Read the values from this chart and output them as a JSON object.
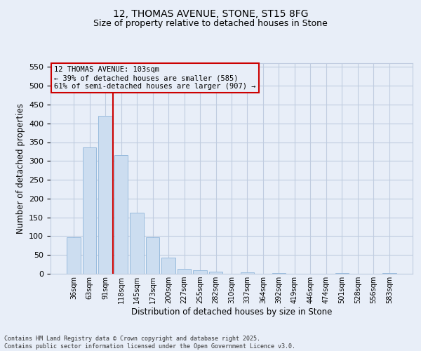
{
  "title_line1": "12, THOMAS AVENUE, STONE, ST15 8FG",
  "title_line2": "Size of property relative to detached houses in Stone",
  "xlabel": "Distribution of detached houses by size in Stone",
  "ylabel": "Number of detached properties",
  "categories": [
    "36sqm",
    "63sqm",
    "91sqm",
    "118sqm",
    "145sqm",
    "173sqm",
    "200sqm",
    "227sqm",
    "255sqm",
    "282sqm",
    "310sqm",
    "337sqm",
    "364sqm",
    "392sqm",
    "419sqm",
    "446sqm",
    "474sqm",
    "501sqm",
    "528sqm",
    "556sqm",
    "583sqm"
  ],
  "values": [
    97,
    336,
    420,
    315,
    163,
    97,
    43,
    13,
    9,
    6,
    0,
    4,
    0,
    1,
    0,
    0,
    0,
    2,
    0,
    0,
    2
  ],
  "bar_color": "#ccddf0",
  "bar_edge_color": "#99bbdd",
  "vline_x_index": 2,
  "vline_color": "#cc0000",
  "annotation_text_line1": "12 THOMAS AVENUE: 103sqm",
  "annotation_text_line2": "← 39% of detached houses are smaller (585)",
  "annotation_text_line3": "61% of semi-detached houses are larger (907) →",
  "annotation_box_edge_color": "#cc0000",
  "ylim": [
    0,
    560
  ],
  "yticks": [
    0,
    50,
    100,
    150,
    200,
    250,
    300,
    350,
    400,
    450,
    500,
    550
  ],
  "grid_color": "#c0cce0",
  "background_color": "#e8eef8",
  "footer_line1": "Contains HM Land Registry data © Crown copyright and database right 2025.",
  "footer_line2": "Contains public sector information licensed under the Open Government Licence v3.0."
}
